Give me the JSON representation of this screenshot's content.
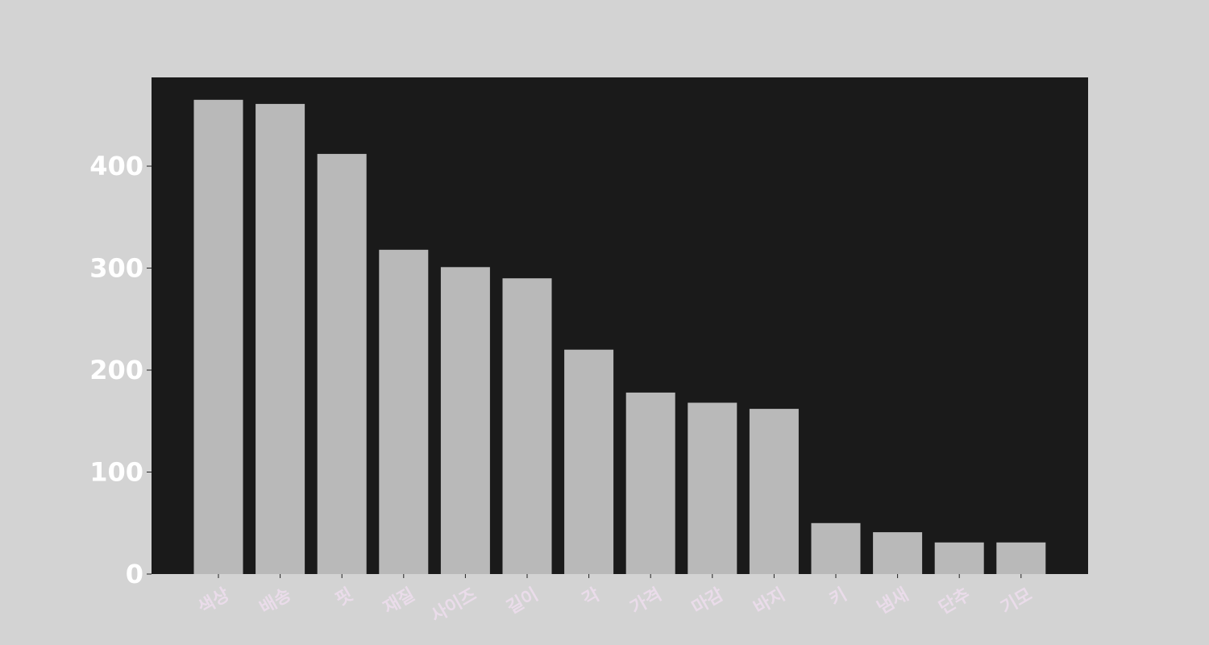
{
  "colors": {
    "page_background": "#d3d3d3",
    "plot_background": "#1a1a1a",
    "bar": "#b9b9b9",
    "y_tick_text": "#ffffff",
    "x_tick_text": "#eadcea"
  },
  "chart_data": {
    "type": "bar",
    "title": "",
    "xlabel": "",
    "ylabel": "",
    "categories": [
      "색상",
      "배송",
      "핏",
      "재질",
      "사이즈",
      "길이",
      "각",
      "가격",
      "마감",
      "바지",
      "키",
      "냄새",
      "단추",
      "기모"
    ],
    "values": [
      465,
      461,
      412,
      318,
      301,
      290,
      220,
      178,
      168,
      162,
      50,
      41,
      31,
      31
    ],
    "ylim": [
      0,
      487
    ],
    "yticks": [
      0,
      100,
      200,
      300,
      400
    ],
    "grid": false,
    "legend": "none"
  }
}
